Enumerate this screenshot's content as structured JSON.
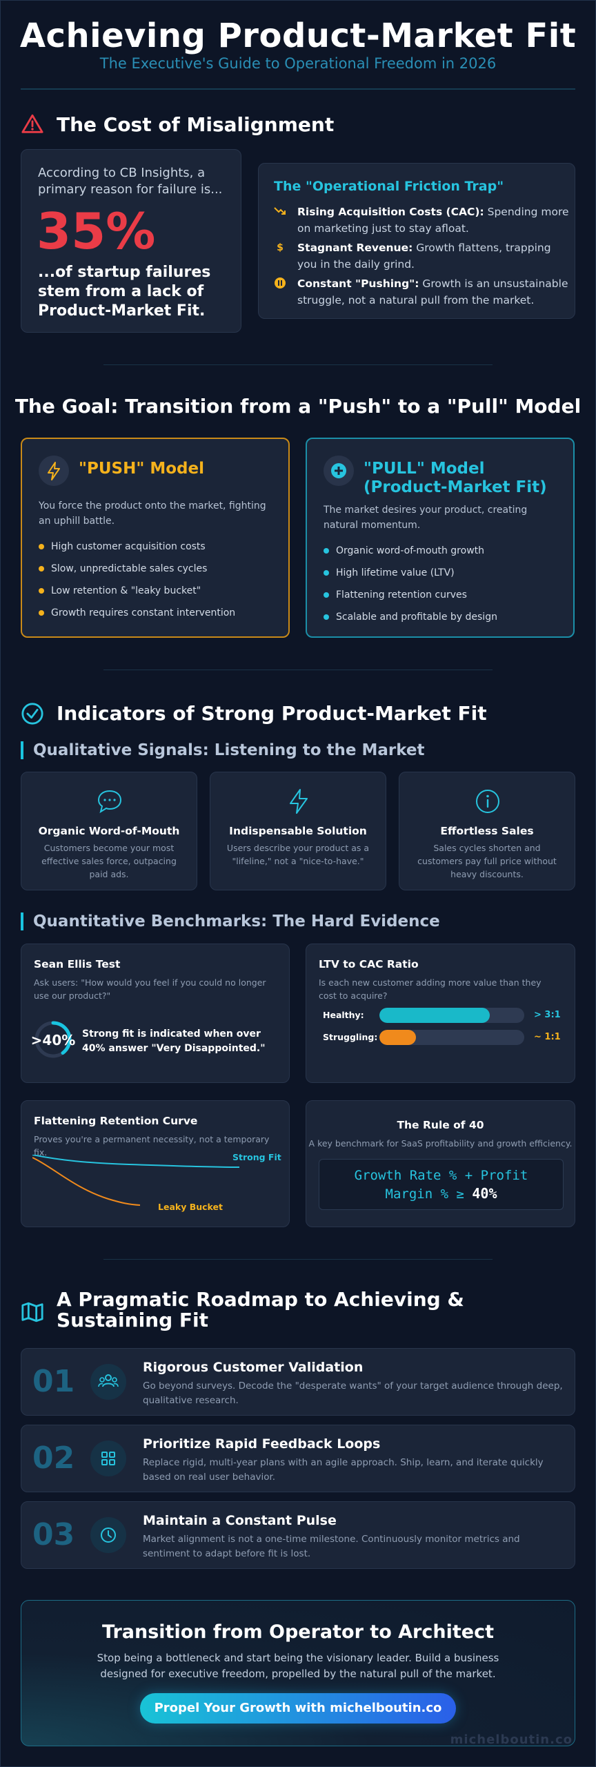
{
  "header": {
    "title": "Achieving Product-Market Fit",
    "subtitle": "The Executive's Guide to Operational Freedom in 2026"
  },
  "misalignment": {
    "heading": "The Cost of Misalignment",
    "intro": "According to CB Insights, a primary reason for failure is...",
    "percent": "35%",
    "outcome": "...of startup failures stem from a lack of Product-Market Fit.",
    "trap_title": "The \"Operational Friction Trap\"",
    "traps": [
      {
        "icon": "trend-down-icon",
        "bold": "Rising Acquisition Costs (CAC):",
        "text": " Spending more on marketing just to stay afloat."
      },
      {
        "icon": "dollar-icon",
        "bold": "Stagnant Revenue:",
        "text": " Growth flattens, trapping you in the daily grind."
      },
      {
        "icon": "pause-icon",
        "bold": "Constant \"Pushing\":",
        "text": " Growth is an unsustainable struggle, not a natural pull from the market."
      }
    ]
  },
  "goal": {
    "heading": "The Goal: Transition from a \"Push\" to a \"Pull\" Model",
    "push": {
      "title": "\"PUSH\" Model",
      "desc": "You force the product onto the market, fighting an uphill battle.",
      "items": [
        "High customer acquisition costs",
        "Slow, unpredictable sales cycles",
        "Low retention & \"leaky bucket\"",
        "Growth requires constant intervention"
      ],
      "color": "#f5b21c"
    },
    "pull": {
      "title_line1": "\"PULL\" Model",
      "title_line2": "(Product-Market Fit)",
      "desc": "The market desires your product, creating natural momentum.",
      "items": [
        "Organic word-of-mouth growth",
        "High lifetime value (LTV)",
        "Flattening retention curves",
        "Scalable and profitable by design"
      ],
      "color": "#27c4df"
    }
  },
  "indicators": {
    "heading": "Indicators of Strong Product-Market Fit",
    "qual_heading": "Qualitative Signals: Listening to the Market",
    "signals": [
      {
        "icon": "chat-bubble-icon",
        "title": "Organic Word-of-Mouth",
        "desc": "Customers become your most effective sales force, outpacing paid ads."
      },
      {
        "icon": "lightning-icon",
        "title": "Indispensable Solution",
        "desc": "Users describe your product as a \"lifeline,\" not a \"nice-to-have.\""
      },
      {
        "icon": "info-icon",
        "title": "Effortless Sales",
        "desc": "Sales cycles shorten and customers pay full price without heavy discounts."
      }
    ],
    "quant_heading": "Quantitative Benchmarks: The Hard Evidence",
    "sean_ellis": {
      "title": "Sean Ellis Test",
      "desc": "Ask users: \"How would you feel if you could no longer use our product?\"",
      "value_label": ">40%",
      "gauge_fraction": 0.4,
      "statement": "Strong fit is indicated when over 40% answer \"Very Disappointed.\""
    },
    "ltv_cac": {
      "title": "LTV to CAC Ratio",
      "desc": "Is each new customer adding more value than they cost to acquire?",
      "rows": [
        {
          "label": "Healthy:",
          "value": "> 3:1",
          "fill": 0.76,
          "color": "#19b9c9"
        },
        {
          "label": "Struggling:",
          "value": "~ 1:1",
          "fill": 0.25,
          "color": "#f08a1c"
        }
      ]
    },
    "retention": {
      "title": "Flattening Retention Curve",
      "desc": "Proves you're a permanent necessity, not a temporary fix.",
      "strong_label": "Strong Fit",
      "leaky_label": "Leaky Bucket"
    },
    "rule40": {
      "title": "The Rule of 40",
      "desc": "A key benchmark for SaaS profitability and growth efficiency.",
      "formula": "Growth Rate % + Profit Margin % ≥",
      "target": "40%"
    }
  },
  "roadmap": {
    "heading": "A Pragmatic Roadmap to Achieving & Sustaining Fit",
    "steps": [
      {
        "num": "01",
        "icon": "users-icon",
        "title": "Rigorous Customer Validation",
        "desc": "Go beyond surveys. Decode the \"desperate wants\" of your target audience through deep, qualitative research."
      },
      {
        "num": "02",
        "icon": "grid-icon",
        "title": "Prioritize Rapid Feedback Loops",
        "desc": "Replace rigid, multi-year plans with an agile approach. Ship, learn, and iterate quickly based on real user behavior."
      },
      {
        "num": "03",
        "icon": "clock-icon",
        "title": "Maintain a Constant Pulse",
        "desc": "Market alignment is not a one-time milestone. Continuously monitor metrics and sentiment to adapt before fit is lost."
      }
    ]
  },
  "cta": {
    "title": "Transition from Operator to Architect",
    "desc": "Stop being a bottleneck and start being the visionary leader. Build a business designed for executive freedom, propelled by the natural pull of the market.",
    "button": "Propel Your Growth with michelboutin.co",
    "watermark": "michelboutin.co"
  }
}
